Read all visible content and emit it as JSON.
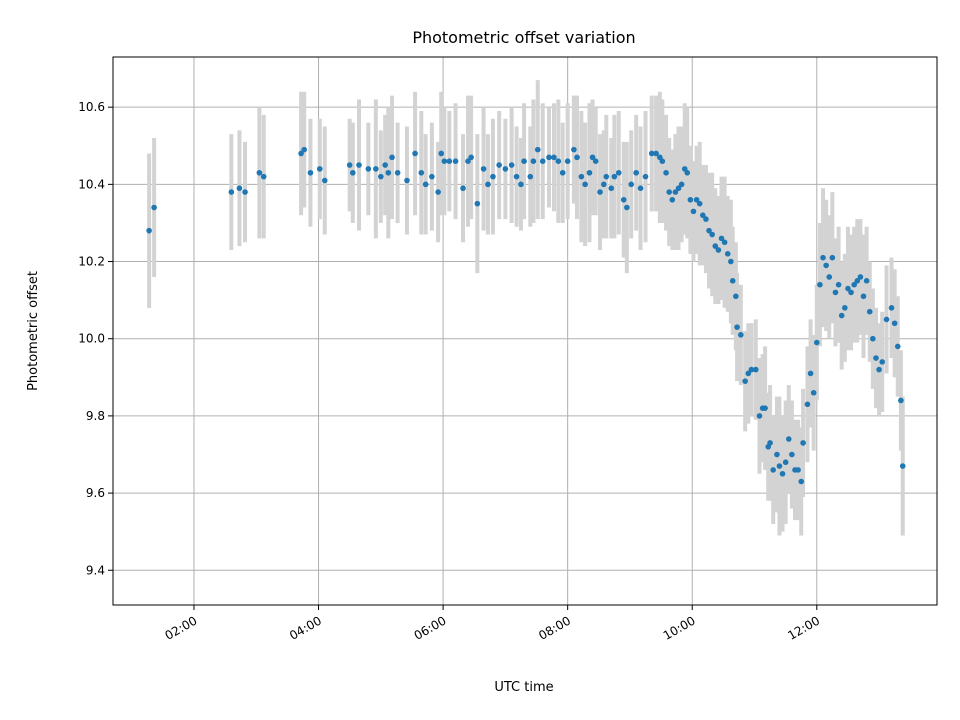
{
  "chart_data": {
    "type": "scatter",
    "title": "Photometric offset variation",
    "xlabel": "UTC time",
    "ylabel": "Photometric offset",
    "x_tick_labels": [
      "02:00",
      "04:00",
      "06:00",
      "08:00",
      "10:00",
      "12:00"
    ],
    "x_ticks_hours": [
      2,
      4,
      6,
      8,
      10,
      12
    ],
    "xlim_hours": [
      0.7,
      13.93
    ],
    "y_ticks": [
      9.4,
      9.6,
      9.8,
      10.0,
      10.2,
      10.4,
      10.6
    ],
    "y_tick_labels": [
      "9.4",
      "9.6",
      "9.8",
      "10.0",
      "10.2",
      "10.4",
      "10.6"
    ],
    "ylim": [
      9.31,
      10.73
    ],
    "grid": true,
    "point_color": "#1f77b4",
    "errorbar_color": "#d3d3d3",
    "points": [
      [
        1.28,
        10.28,
        0.2
      ],
      [
        1.36,
        10.34,
        0.18
      ],
      [
        2.6,
        10.38,
        0.15
      ],
      [
        2.73,
        10.39,
        0.15
      ],
      [
        2.82,
        10.38,
        0.13
      ],
      [
        3.05,
        10.43,
        0.17
      ],
      [
        3.12,
        10.42,
        0.16
      ],
      [
        3.72,
        10.48,
        0.16
      ],
      [
        3.77,
        10.49,
        0.15
      ],
      [
        3.87,
        10.43,
        0.14
      ],
      [
        4.02,
        10.44,
        0.13
      ],
      [
        4.1,
        10.41,
        0.14
      ],
      [
        4.5,
        10.45,
        0.12
      ],
      [
        4.55,
        10.43,
        0.13
      ],
      [
        4.65,
        10.45,
        0.17
      ],
      [
        4.8,
        10.44,
        0.12
      ],
      [
        4.92,
        10.44,
        0.18
      ],
      [
        5.0,
        10.42,
        0.12
      ],
      [
        5.07,
        10.45,
        0.13
      ],
      [
        5.12,
        10.43,
        0.17
      ],
      [
        5.18,
        10.47,
        0.16
      ],
      [
        5.27,
        10.43,
        0.13
      ],
      [
        5.42,
        10.41,
        0.14
      ],
      [
        5.55,
        10.48,
        0.16
      ],
      [
        5.65,
        10.43,
        0.16
      ],
      [
        5.72,
        10.4,
        0.13
      ],
      [
        5.82,
        10.42,
        0.14
      ],
      [
        5.92,
        10.38,
        0.13
      ],
      [
        5.97,
        10.48,
        0.16
      ],
      [
        6.02,
        10.46,
        0.14
      ],
      [
        6.1,
        10.46,
        0.13
      ],
      [
        6.2,
        10.46,
        0.15
      ],
      [
        6.32,
        10.39,
        0.14
      ],
      [
        6.4,
        10.46,
        0.17
      ],
      [
        6.45,
        10.47,
        0.16
      ],
      [
        6.55,
        10.35,
        0.18
      ],
      [
        6.65,
        10.44,
        0.16
      ],
      [
        6.72,
        10.4,
        0.13
      ],
      [
        6.8,
        10.42,
        0.15
      ],
      [
        6.9,
        10.45,
        0.14
      ],
      [
        7.0,
        10.44,
        0.13
      ],
      [
        7.1,
        10.45,
        0.15
      ],
      [
        7.18,
        10.42,
        0.13
      ],
      [
        7.25,
        10.4,
        0.12
      ],
      [
        7.3,
        10.46,
        0.15
      ],
      [
        7.4,
        10.42,
        0.13
      ],
      [
        7.45,
        10.46,
        0.16
      ],
      [
        7.52,
        10.49,
        0.18
      ],
      [
        7.6,
        10.46,
        0.15
      ],
      [
        7.7,
        10.47,
        0.13
      ],
      [
        7.78,
        10.47,
        0.14
      ],
      [
        7.85,
        10.46,
        0.16
      ],
      [
        7.92,
        10.43,
        0.13
      ],
      [
        8.0,
        10.46,
        0.15
      ],
      [
        8.1,
        10.49,
        0.14
      ],
      [
        8.15,
        10.47,
        0.16
      ],
      [
        8.22,
        10.42,
        0.17
      ],
      [
        8.28,
        10.4,
        0.16
      ],
      [
        8.35,
        10.43,
        0.18
      ],
      [
        8.4,
        10.47,
        0.15
      ],
      [
        8.45,
        10.46,
        0.14
      ],
      [
        8.52,
        10.38,
        0.15
      ],
      [
        8.58,
        10.4,
        0.14
      ],
      [
        8.62,
        10.42,
        0.16
      ],
      [
        8.7,
        10.39,
        0.13
      ],
      [
        8.75,
        10.42,
        0.16
      ],
      [
        8.82,
        10.43,
        0.16
      ],
      [
        8.9,
        10.36,
        0.15
      ],
      [
        8.95,
        10.34,
        0.17
      ],
      [
        9.02,
        10.4,
        0.14
      ],
      [
        9.1,
        10.43,
        0.15
      ],
      [
        9.17,
        10.39,
        0.16
      ],
      [
        9.25,
        10.42,
        0.17
      ],
      [
        9.35,
        10.48,
        0.15
      ],
      [
        9.42,
        10.48,
        0.15
      ],
      [
        9.48,
        10.47,
        0.17
      ],
      [
        9.52,
        10.46,
        0.16
      ],
      [
        9.58,
        10.43,
        0.15
      ],
      [
        9.63,
        10.38,
        0.14
      ],
      [
        9.68,
        10.36,
        0.13
      ],
      [
        9.73,
        10.38,
        0.15
      ],
      [
        9.78,
        10.39,
        0.16
      ],
      [
        9.83,
        10.4,
        0.15
      ],
      [
        9.88,
        10.44,
        0.17
      ],
      [
        9.92,
        10.43,
        0.17
      ],
      [
        9.97,
        10.36,
        0.14
      ],
      [
        10.02,
        10.33,
        0.13
      ],
      [
        10.07,
        10.36,
        0.14
      ],
      [
        10.12,
        10.35,
        0.16
      ],
      [
        10.17,
        10.32,
        0.13
      ],
      [
        10.22,
        10.31,
        0.14
      ],
      [
        10.27,
        10.28,
        0.15
      ],
      [
        10.32,
        10.27,
        0.16
      ],
      [
        10.37,
        10.24,
        0.15
      ],
      [
        10.42,
        10.23,
        0.14
      ],
      [
        10.47,
        10.26,
        0.16
      ],
      [
        10.52,
        10.25,
        0.17
      ],
      [
        10.57,
        10.22,
        0.15
      ],
      [
        10.62,
        10.2,
        0.16
      ],
      [
        10.65,
        10.15,
        0.14
      ],
      [
        10.7,
        10.11,
        0.14
      ],
      [
        10.72,
        10.03,
        0.14
      ],
      [
        10.78,
        10.01,
        0.13
      ],
      [
        10.85,
        9.89,
        0.13
      ],
      [
        10.9,
        9.91,
        0.13
      ],
      [
        10.95,
        9.92,
        0.12
      ],
      [
        11.02,
        9.92,
        0.13
      ],
      [
        11.08,
        9.8,
        0.15
      ],
      [
        11.13,
        9.82,
        0.14
      ],
      [
        11.17,
        9.82,
        0.16
      ],
      [
        11.22,
        9.72,
        0.14
      ],
      [
        11.25,
        9.73,
        0.15
      ],
      [
        11.3,
        9.66,
        0.14
      ],
      [
        11.36,
        9.7,
        0.15
      ],
      [
        11.4,
        9.67,
        0.18
      ],
      [
        11.45,
        9.65,
        0.15
      ],
      [
        11.5,
        9.68,
        0.16
      ],
      [
        11.55,
        9.74,
        0.14
      ],
      [
        11.6,
        9.7,
        0.14
      ],
      [
        11.65,
        9.66,
        0.13
      ],
      [
        11.7,
        9.66,
        0.13
      ],
      [
        11.75,
        9.63,
        0.14
      ],
      [
        11.78,
        9.73,
        0.14
      ],
      [
        11.85,
        9.83,
        0.15
      ],
      [
        11.9,
        9.91,
        0.14
      ],
      [
        11.95,
        9.86,
        0.15
      ],
      [
        12.0,
        9.99,
        0.15
      ],
      [
        12.05,
        10.14,
        0.16
      ],
      [
        12.1,
        10.21,
        0.18
      ],
      [
        12.15,
        10.19,
        0.17
      ],
      [
        12.2,
        10.16,
        0.16
      ],
      [
        12.25,
        10.21,
        0.17
      ],
      [
        12.3,
        10.12,
        0.14
      ],
      [
        12.35,
        10.14,
        0.15
      ],
      [
        12.4,
        10.06,
        0.14
      ],
      [
        12.45,
        10.08,
        0.14
      ],
      [
        12.5,
        10.13,
        0.16
      ],
      [
        12.55,
        10.12,
        0.15
      ],
      [
        12.6,
        10.14,
        0.15
      ],
      [
        12.65,
        10.15,
        0.16
      ],
      [
        12.7,
        10.16,
        0.15
      ],
      [
        12.75,
        10.11,
        0.16
      ],
      [
        12.8,
        10.15,
        0.14
      ],
      [
        12.85,
        10.07,
        0.13
      ],
      [
        12.9,
        10.0,
        0.13
      ],
      [
        12.95,
        9.95,
        0.13
      ],
      [
        13.0,
        9.92,
        0.12
      ],
      [
        13.05,
        9.94,
        0.13
      ],
      [
        13.12,
        10.05,
        0.14
      ],
      [
        13.2,
        10.08,
        0.13
      ],
      [
        13.25,
        10.04,
        0.14
      ],
      [
        13.3,
        9.98,
        0.13
      ],
      [
        13.35,
        9.84,
        0.13
      ],
      [
        13.38,
        9.67,
        0.18
      ]
    ]
  }
}
